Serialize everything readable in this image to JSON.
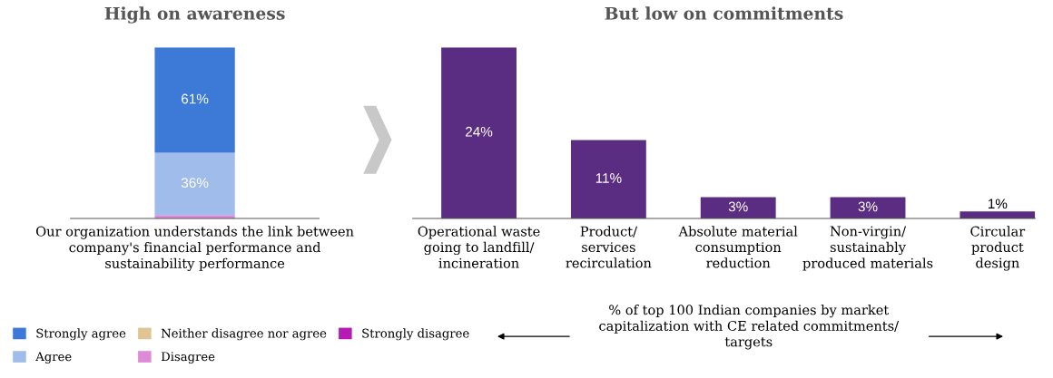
{
  "chart_data": [
    {
      "type": "bar",
      "stacked": true,
      "title": "High on awareness",
      "categories": [
        "Our organization understands the link between\ncompany's financial performance and\nsustainability performance"
      ],
      "tick_labels": "x",
      "legend": "bottom",
      "series": [
        {
          "name": "Strongly disagree",
          "color": "#b51ab5",
          "values": [
            0
          ],
          "value_labels": [
            null
          ]
        },
        {
          "name": "Disagree",
          "color": "#dd8ad8",
          "values": [
            2
          ],
          "value_labels": [
            null
          ]
        },
        {
          "name": "Neither disagree nor agree",
          "color": "#dfc594",
          "values": [
            0
          ],
          "value_labels": [
            null
          ]
        },
        {
          "name": "Agree",
          "color": "#a0bcea",
          "values": [
            36
          ],
          "value_labels": [
            "36%"
          ]
        },
        {
          "name": "Strongly agree",
          "color": "#3d7ad8",
          "values": [
            61
          ],
          "value_labels": [
            "61%"
          ]
        }
      ]
    },
    {
      "type": "bar",
      "title": "But low on commitments",
      "categories": [
        "Operational waste\ngoing to landfill/\nincineration",
        "Product/\nservices\nrecirculation",
        "Absolute material\nconsumption\nreduction",
        "Non-virgin/\nsustainably\nproduced materials",
        "Circular\nproduct\ndesign"
      ],
      "tick_labels": "x",
      "series": [
        {
          "color": "#5b2d82",
          "values": [
            24,
            11,
            3,
            3,
            1
          ],
          "value_labels": [
            "24%",
            "11%",
            "3%",
            "3%",
            "1%"
          ]
        }
      ],
      "annotations": [
        "% of top 100 Indian companies by market\ncapitalization with CE related commitments/\ntargets"
      ]
    }
  ]
}
